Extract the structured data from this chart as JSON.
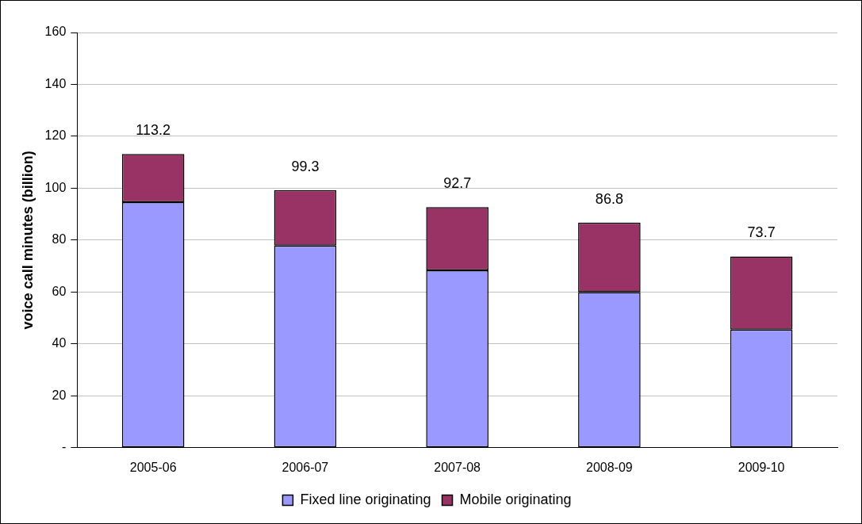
{
  "chart_data": {
    "type": "bar",
    "stacked": true,
    "ylabel": "voice call minutes (billion)",
    "categories": [
      "2005-06",
      "2006-07",
      "2007-08",
      "2008-09",
      "2009-10"
    ],
    "series": [
      {
        "name": "Fixed line originating",
        "color": "#9999ff",
        "values": [
          94.6,
          77.9,
          68.4,
          60.0,
          45.5
        ]
      },
      {
        "name": "Mobile originating",
        "color": "#993366",
        "values": [
          18.6,
          21.4,
          24.3,
          26.8,
          28.2
        ]
      }
    ],
    "totals": [
      "113.2",
      "99.3",
      "92.7",
      "86.8",
      "73.7"
    ],
    "ylim": [
      0,
      160
    ],
    "yticks": [
      {
        "value": 0,
        "label": "-"
      },
      20,
      40,
      60,
      80,
      100,
      120,
      140,
      160
    ],
    "grid": "y",
    "legend": "bottom"
  }
}
